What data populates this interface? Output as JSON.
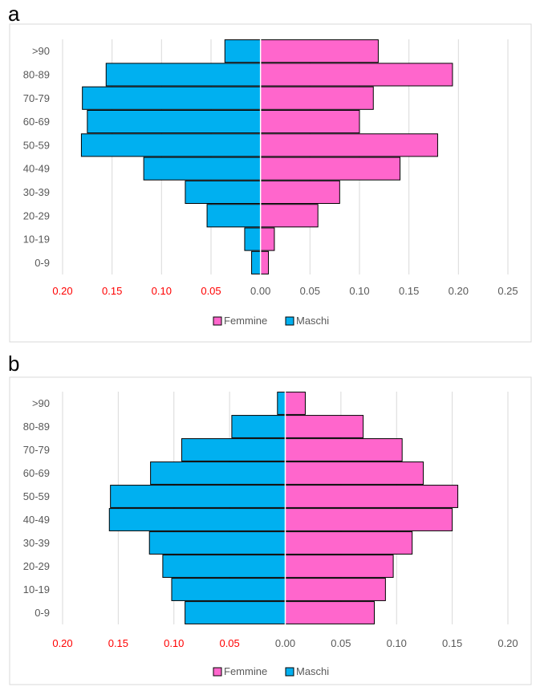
{
  "panels": [
    {
      "letter": "a"
    },
    {
      "letter": "b"
    }
  ],
  "chart_data": [
    {
      "type": "bar",
      "orientation": "horizontal",
      "diverging": true,
      "categories": [
        ">90",
        "80-89",
        "70-79",
        "60-69",
        "50-59",
        "40-49",
        "30-39",
        "20-29",
        "10-19",
        "0-9"
      ],
      "series": [
        {
          "name": "Femmine",
          "color": "#ff66cc",
          "values": [
            0.119,
            0.194,
            0.114,
            0.1,
            0.179,
            0.141,
            0.08,
            0.058,
            0.014,
            0.008
          ]
        },
        {
          "name": "Maschi",
          "color": "#00b0f0",
          "values": [
            0.036,
            0.156,
            0.18,
            0.175,
            0.181,
            0.118,
            0.076,
            0.054,
            0.016,
            0.009
          ]
        }
      ],
      "xlim": [
        -0.2,
        0.25
      ],
      "xticks": [
        "0.20",
        "0.15",
        "0.10",
        "0.05",
        "0.00",
        "0.05",
        "0.10",
        "0.15",
        "0.20",
        "0.25"
      ],
      "negative_tick_color": "#ff0000",
      "grid": true,
      "legend_position": "bottom"
    },
    {
      "type": "bar",
      "orientation": "horizontal",
      "diverging": true,
      "categories": [
        ">90",
        "80-89",
        "70-79",
        "60-69",
        "50-59",
        "40-49",
        "30-39",
        "20-29",
        "10-19",
        "0-9"
      ],
      "series": [
        {
          "name": "Femmine",
          "color": "#ff66cc",
          "values": [
            0.018,
            0.07,
            0.105,
            0.124,
            0.155,
            0.15,
            0.114,
            0.097,
            0.09,
            0.08
          ]
        },
        {
          "name": "Maschi",
          "color": "#00b0f0",
          "values": [
            0.007,
            0.048,
            0.093,
            0.121,
            0.157,
            0.158,
            0.122,
            0.11,
            0.102,
            0.09
          ]
        }
      ],
      "xlim": [
        -0.2,
        0.2
      ],
      "xticks": [
        "0.20",
        "0.15",
        "0.10",
        "0.05",
        "0.00",
        "0.05",
        "0.10",
        "0.15",
        "0.20"
      ],
      "negative_tick_color": "#ff0000",
      "grid": true,
      "legend_position": "bottom"
    }
  ]
}
